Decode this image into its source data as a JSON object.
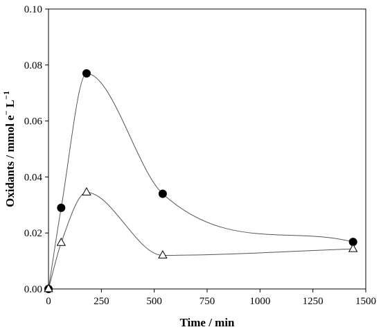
{
  "chart_data": {
    "type": "scatter",
    "xlabel": "Time / min",
    "ylabel_main": "Oxidants / mmol e",
    "ylabel_sup1": "−",
    "ylabel_mid": " L",
    "ylabel_sup2": "−1",
    "xlim": [
      0,
      1500
    ],
    "ylim": [
      0,
      0.1
    ],
    "xticks": [
      0,
      250,
      500,
      750,
      1000,
      1250,
      1500
    ],
    "yticks": [
      0.0,
      0.02,
      0.04,
      0.06,
      0.08,
      0.1
    ],
    "ytick_labels": [
      "0.00",
      "0.02",
      "0.04",
      "0.06",
      "0.08",
      "0.10"
    ],
    "grid": false,
    "series": [
      {
        "marker": "filled-circle",
        "color": "#000000",
        "line_color": "#555555",
        "x": [
          0,
          60,
          180,
          540,
          1440
        ],
        "y": [
          0.0,
          0.029,
          0.077,
          0.034,
          0.0168
        ]
      },
      {
        "marker": "open-triangle",
        "color": "#000000",
        "line_color": "#555555",
        "x": [
          0,
          60,
          180,
          540,
          1440
        ],
        "y": [
          0.0,
          0.0165,
          0.0345,
          0.012,
          0.0143
        ]
      }
    ]
  }
}
